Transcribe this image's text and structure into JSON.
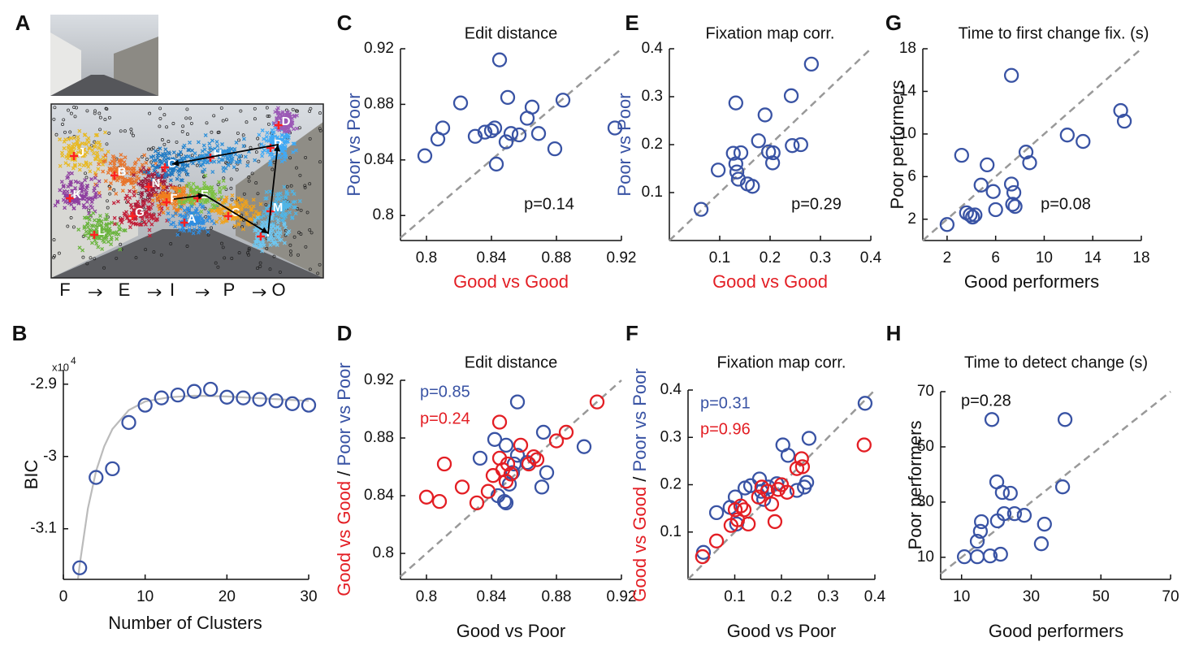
{
  "chart_data": [
    {
      "panel": "A",
      "type": "scene",
      "clusters": [
        {
          "label": "J",
          "color": "#e8b923"
        },
        {
          "label": "B",
          "color": "#e8742a"
        },
        {
          "label": "K",
          "color": "#8e3fa0"
        },
        {
          "label": "L",
          "color": "#6ab43e"
        },
        {
          "label": "G",
          "color": "#c0203a"
        },
        {
          "label": "N",
          "color": "#a01c3c"
        },
        {
          "label": "O",
          "color": "#1f7ac4"
        },
        {
          "label": "H",
          "color": "#2d8fd8"
        },
        {
          "label": "F",
          "color": "#f07f1e"
        },
        {
          "label": "E",
          "color": "#7cc142"
        },
        {
          "label": "A",
          "color": "#2f8de0"
        },
        {
          "label": "C",
          "color": "#f0a21c"
        },
        {
          "label": "M",
          "color": "#4fb6e8"
        },
        {
          "label": "I",
          "color": "#6ec6f0"
        },
        {
          "label": "P",
          "color": "#3fa9f5"
        },
        {
          "label": "D",
          "color": "#9b59b6"
        }
      ],
      "scanpath": [
        "F",
        "E",
        "I",
        "P",
        "O"
      ]
    },
    {
      "panel": "B",
      "type": "scatter",
      "xlabel": "Number of Clusters",
      "ylabel": "BIC",
      "y_scale_label": "x10",
      "y_scale_exp": "4",
      "xlim": [
        0,
        30
      ],
      "ylim": [
        -3.17,
        -2.88
      ],
      "xticks": [
        0,
        10,
        20,
        30
      ],
      "yticks": [
        -2.9,
        -3,
        -3.1
      ],
      "series": [
        {
          "color": "#bbbbbb",
          "style": "line",
          "x": [
            1.8,
            2,
            3,
            4,
            5,
            6,
            8,
            10,
            13,
            16,
            20,
            25,
            30
          ],
          "values": [
            -3.169,
            -3.15,
            -3.072,
            -3.02,
            -2.986,
            -2.962,
            -2.936,
            -2.924,
            -2.918,
            -2.916,
            -2.917,
            -2.92,
            -2.923
          ]
        },
        {
          "color": "#3953a4",
          "x": [
            2,
            4,
            6,
            8,
            10,
            12,
            14,
            16,
            18,
            20,
            22,
            24,
            26,
            28,
            30
          ],
          "values": [
            -3.154,
            -3.029,
            -3.017,
            -2.953,
            -2.929,
            -2.919,
            -2.915,
            -2.91,
            -2.907,
            -2.918,
            -2.919,
            -2.921,
            -2.923,
            -2.927,
            -2.929
          ]
        }
      ]
    },
    {
      "panel": "C",
      "type": "scatter",
      "title": "Edit distance",
      "xlabel": "Good vs Good",
      "xlabel_color": "#e31e24",
      "ylabel": "Poor vs Poor",
      "ylabel_color": "#3953a4",
      "diagonal": true,
      "annotations": [
        "p=0.14"
      ],
      "xlim": [
        0.784,
        0.92
      ],
      "ylim": [
        0.782,
        0.92
      ],
      "xticks": [
        0.8,
        0.84,
        0.88,
        0.92
      ],
      "yticks": [
        0.8,
        0.84,
        0.88,
        0.92
      ],
      "series": [
        {
          "color": "#3953a4",
          "x": [
            0.799,
            0.807,
            0.81,
            0.821,
            0.83,
            0.836,
            0.84,
            0.842,
            0.845,
            0.843,
            0.849,
            0.85,
            0.852,
            0.857,
            0.862,
            0.865,
            0.869,
            0.879,
            0.884,
            0.916
          ],
          "values": [
            0.843,
            0.855,
            0.863,
            0.881,
            0.857,
            0.86,
            0.861,
            0.863,
            0.912,
            0.837,
            0.853,
            0.885,
            0.859,
            0.858,
            0.87,
            0.878,
            0.859,
            0.848,
            0.883,
            0.863
          ]
        }
      ]
    },
    {
      "panel": "D",
      "type": "scatter",
      "title": "Edit distance",
      "xlabel": "Good vs Poor",
      "ylabel": [
        "Good vs Good",
        "/",
        "Poor vs Poor"
      ],
      "ylabel_colors": [
        "#e31e24",
        "#111111",
        "#3953a4"
      ],
      "diagonal": true,
      "annotations": [
        "p=0.85",
        "p=0.24"
      ],
      "xlim": [
        0.784,
        0.92
      ],
      "ylim": [
        0.782,
        0.92
      ],
      "xticks": [
        0.8,
        0.84,
        0.88,
        0.92
      ],
      "yticks": [
        0.8,
        0.84,
        0.88,
        0.92
      ],
      "series": [
        {
          "color": "#3953a4",
          "x": [
            0.833,
            0.842,
            0.844,
            0.849,
            0.848,
            0.849,
            0.851,
            0.853,
            0.856,
            0.854,
            0.856,
            0.872,
            0.874,
            0.871,
            0.897,
            0.862
          ],
          "values": [
            0.866,
            0.879,
            0.84,
            0.875,
            0.836,
            0.835,
            0.848,
            0.856,
            0.905,
            0.862,
            0.868,
            0.884,
            0.856,
            0.846,
            0.874,
            0.863
          ]
        },
        {
          "color": "#e31e24",
          "x": [
            0.8,
            0.808,
            0.811,
            0.822,
            0.831,
            0.838,
            0.841,
            0.845,
            0.845,
            0.847,
            0.85,
            0.849,
            0.852,
            0.858,
            0.863,
            0.866,
            0.868,
            0.88,
            0.886,
            0.905
          ],
          "values": [
            0.839,
            0.836,
            0.862,
            0.846,
            0.835,
            0.843,
            0.854,
            0.891,
            0.866,
            0.858,
            0.862,
            0.85,
            0.855,
            0.875,
            0.862,
            0.867,
            0.865,
            0.878,
            0.884,
            0.905
          ]
        }
      ]
    },
    {
      "panel": "E",
      "type": "scatter",
      "title": "Fixation map corr.",
      "xlabel": "Good vs Good",
      "xlabel_color": "#e31e24",
      "ylabel": "Poor vs Poor",
      "ylabel_color": "#3953a4",
      "diagonal": true,
      "annotations": [
        "p=0.29"
      ],
      "xlim": [
        0,
        0.4
      ],
      "ylim": [
        0,
        0.4
      ],
      "xticks": [
        0.1,
        0.2,
        0.3,
        0.4
      ],
      "yticks": [
        0.1,
        0.2,
        0.3,
        0.4
      ],
      "series": [
        {
          "color": "#3953a4",
          "x": [
            0.063,
            0.097,
            0.127,
            0.132,
            0.142,
            0.132,
            0.134,
            0.137,
            0.155,
            0.165,
            0.177,
            0.19,
            0.197,
            0.206,
            0.205,
            0.242,
            0.244,
            0.261,
            0.282
          ],
          "values": [
            0.065,
            0.147,
            0.182,
            0.287,
            0.183,
            0.16,
            0.143,
            0.128,
            0.118,
            0.113,
            0.208,
            0.262,
            0.185,
            0.183,
            0.162,
            0.302,
            0.198,
            0.2,
            0.368
          ]
        }
      ]
    },
    {
      "panel": "F",
      "type": "scatter",
      "title": "Fixation map corr.",
      "xlabel": "Good vs Poor",
      "ylabel": [
        "Good vs Good",
        "/",
        "Poor vs Poor"
      ],
      "ylabel_colors": [
        "#e31e24",
        "#111111",
        "#3953a4"
      ],
      "diagonal": true,
      "annotations": [
        "p=0.31",
        "p=0.96"
      ],
      "xlim": [
        0,
        0.4
      ],
      "ylim": [
        0,
        0.4
      ],
      "xticks": [
        0.1,
        0.2,
        0.3,
        0.4
      ],
      "yticks": [
        0.1,
        0.2,
        0.3,
        0.4
      ],
      "series": [
        {
          "color": "#3953a4",
          "x": [
            0.033,
            0.061,
            0.09,
            0.101,
            0.104,
            0.122,
            0.134,
            0.153,
            0.157,
            0.162,
            0.172,
            0.19,
            0.203,
            0.214,
            0.233,
            0.249,
            0.254,
            0.259,
            0.379
          ],
          "values": [
            0.057,
            0.141,
            0.152,
            0.174,
            0.117,
            0.193,
            0.198,
            0.212,
            0.186,
            0.169,
            0.195,
            0.202,
            0.284,
            0.262,
            0.188,
            0.195,
            0.205,
            0.298,
            0.372
          ]
        },
        {
          "color": "#e31e24",
          "x": [
            0.031,
            0.061,
            0.092,
            0.101,
            0.106,
            0.113,
            0.12,
            0.129,
            0.151,
            0.158,
            0.17,
            0.179,
            0.186,
            0.193,
            0.2,
            0.212,
            0.233,
            0.243,
            0.245,
            0.377
          ],
          "values": [
            0.048,
            0.081,
            0.114,
            0.147,
            0.126,
            0.155,
            0.147,
            0.117,
            0.174,
            0.195,
            0.186,
            0.159,
            0.122,
            0.19,
            0.2,
            0.184,
            0.234,
            0.255,
            0.238,
            0.284
          ]
        }
      ]
    },
    {
      "panel": "G",
      "type": "scatter",
      "title": "Time to first change fix. (s)",
      "xlabel": "Good performers",
      "ylabel": "Poor performers",
      "diagonal": true,
      "annotations": [
        "p=0.08"
      ],
      "xlim": [
        0,
        18
      ],
      "ylim": [
        0,
        18
      ],
      "xticks": [
        2,
        6,
        10,
        14,
        18
      ],
      "yticks": [
        2,
        6,
        10,
        14,
        18
      ],
      "series": [
        {
          "color": "#3953a4",
          "x": [
            2,
            3.2,
            3.6,
            3.9,
            4.1,
            4.3,
            4.8,
            5.3,
            5.8,
            6,
            7.3,
            7.3,
            7.5,
            7.4,
            7.6,
            8.5,
            8.8,
            11.9,
            13.2,
            16.3,
            16.6
          ],
          "values": [
            1.5,
            8,
            2.6,
            2.4,
            2.2,
            2.4,
            5.2,
            7.1,
            4.6,
            2.9,
            15.5,
            5.3,
            4.5,
            3.4,
            3.2,
            8.3,
            7.3,
            9.9,
            9.3,
            12.2,
            11.2
          ]
        }
      ]
    },
    {
      "panel": "H",
      "type": "scatter",
      "title": "Time to detect change (s)",
      "xlabel": "Good performers",
      "ylabel": "Poor performers",
      "diagonal": true,
      "annotations": [
        "p=0.28"
      ],
      "xlim": [
        4,
        70
      ],
      "ylim": [
        2,
        70
      ],
      "xticks": [
        10,
        30,
        50,
        70
      ],
      "yticks": [
        10,
        30,
        50,
        70
      ],
      "series": [
        {
          "color": "#3953a4",
          "x": [
            10.8,
            14.5,
            18.2,
            21.2,
            14.5,
            15.4,
            15.7,
            20.3,
            22.2,
            25.2,
            28,
            20.1,
            21.7,
            24,
            18.7,
            39.7,
            39,
            33.8,
            32.9
          ],
          "values": [
            10.2,
            10.2,
            10.5,
            11.1,
            15.8,
            19.4,
            22.9,
            23.2,
            25.8,
            25.8,
            25.2,
            37.3,
            33.5,
            33.2,
            59.9,
            59.9,
            35.5,
            22,
            14.9
          ]
        }
      ]
    }
  ]
}
